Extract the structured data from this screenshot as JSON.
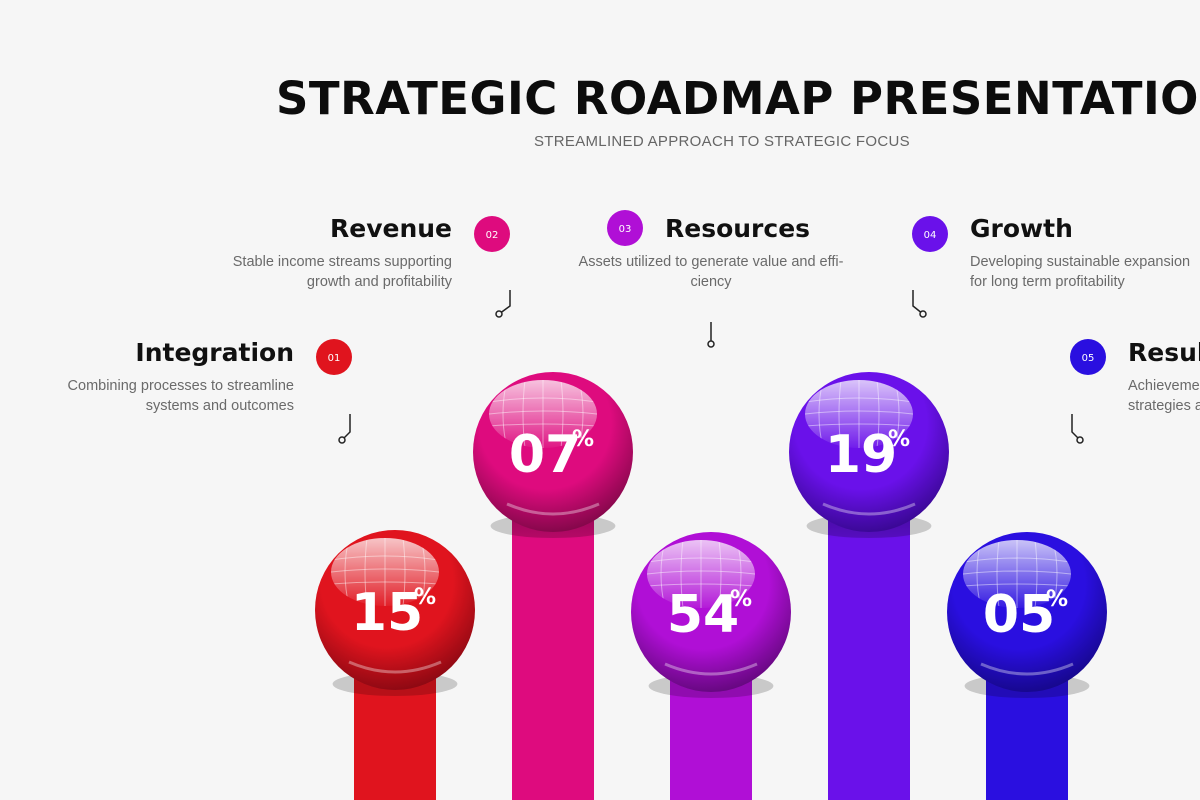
{
  "header": {
    "title": "STRATEGIC ROADMAP PRESENTATION",
    "subtitle": "STREAMLINED APPROACH TO STRATEGIC FOCUS"
  },
  "items": [
    {
      "number": "01",
      "heading": "Integration",
      "description": "Combining processes to streamline systems and outcomes",
      "value": "15",
      "unit": "%",
      "color": "#e0141e",
      "color_dark": "#7a0610"
    },
    {
      "number": "02",
      "heading": "Revenue",
      "description": "Stable income streams supporting growth and profitability",
      "value": "07",
      "unit": "%",
      "color": "#de0b7e",
      "color_dark": "#6f063e"
    },
    {
      "number": "03",
      "heading": "Resources",
      "description": "Assets utilized to generate value and effi- ciency",
      "value": "54",
      "unit": "%",
      "color": "#b00fd6",
      "color_dark": "#55066c"
    },
    {
      "number": "04",
      "heading": "Growth",
      "description": "Developing sustainable expansion for long term profitability",
      "value": "19",
      "unit": "%",
      "color": "#6a11ea",
      "color_dark": "#2f0681"
    },
    {
      "number": "05",
      "heading": "Resul",
      "description": "Achieveme strategies a",
      "value": "05",
      "unit": "%",
      "color": "#2a0fe0",
      "color_dark": "#12067a"
    }
  ]
}
